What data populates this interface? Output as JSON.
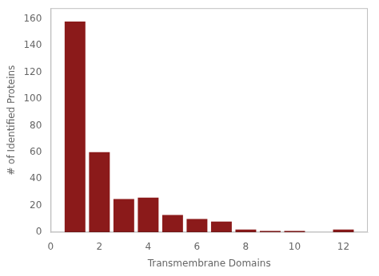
{
  "chart_data": {
    "type": "bar",
    "x": [
      1,
      2,
      3,
      4,
      5,
      6,
      7,
      8,
      9,
      10,
      11,
      12
    ],
    "values": [
      158,
      60,
      25,
      26,
      13,
      10,
      8,
      2,
      1,
      1,
      0,
      2
    ],
    "color": "#8B1A1A",
    "xlabel": "Transmembrane Domains",
    "ylabel": "# of Identified Proteins",
    "xlim": [
      0,
      13
    ],
    "ylim": [
      0,
      168
    ],
    "xticks": [
      0,
      2,
      4,
      6,
      8,
      10,
      12
    ],
    "yticks": [
      0,
      20,
      40,
      60,
      80,
      100,
      120,
      140,
      160
    ],
    "grid": false
  }
}
